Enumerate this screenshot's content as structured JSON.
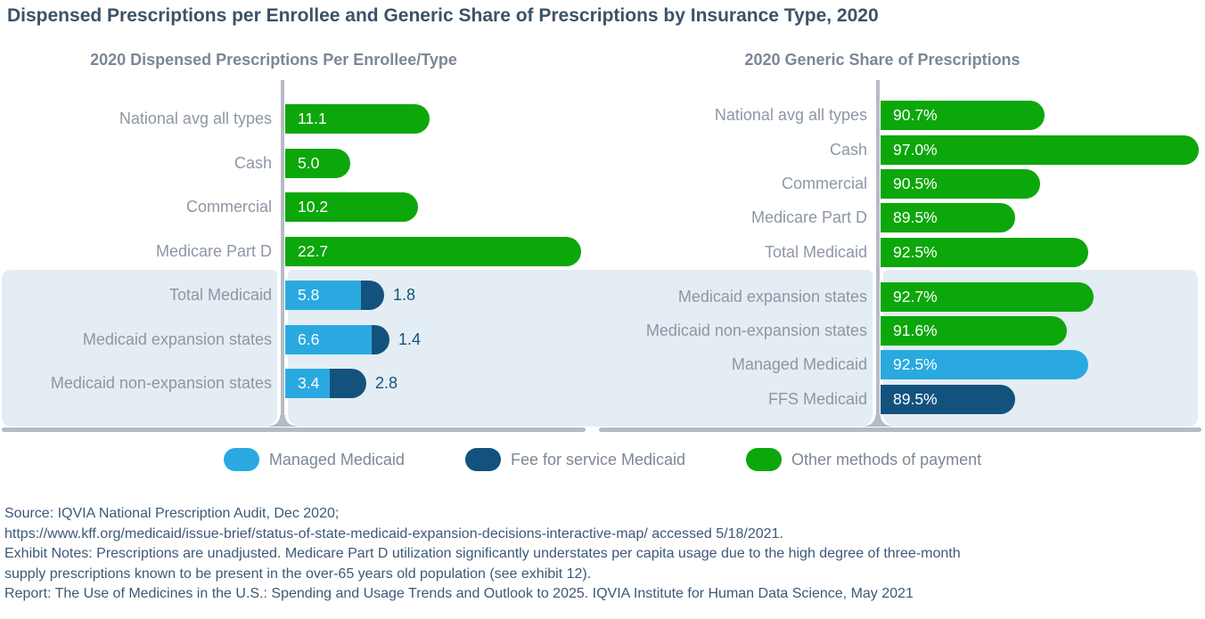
{
  "title": "Dispensed Prescriptions per Enrollee and Generic Share of Prescriptions by Insurance Type, 2020",
  "colors": {
    "green": "#0ca70a",
    "light_blue": "#2aa9e0",
    "dark_blue": "#14527e",
    "highlight_band": "#e3edf3",
    "axis_gray": "#b5bcc4",
    "title_text": "#3c5268",
    "subtitle_text": "#7c8796",
    "label_text": "#8d97a3",
    "outside_value_text": "#17527c",
    "notes_text": "#3e5878"
  },
  "chart_data": [
    {
      "type": "bar",
      "orientation": "horizontal",
      "title": "2020 Dispensed Prescriptions Per Enrollee/Type",
      "xlim": [
        0,
        23.5
      ],
      "grid": false,
      "rows": [
        {
          "label": "National avg all types",
          "highlighted": false,
          "segments": [
            {
              "value": 11.1,
              "text": "11.1",
              "color": "green",
              "text_position": "inside"
            }
          ]
        },
        {
          "label": "Cash",
          "highlighted": false,
          "segments": [
            {
              "value": 5.0,
              "text": "5.0",
              "color": "green",
              "text_position": "inside"
            }
          ]
        },
        {
          "label": "Commercial",
          "highlighted": false,
          "segments": [
            {
              "value": 10.2,
              "text": "10.2",
              "color": "green",
              "text_position": "inside"
            }
          ]
        },
        {
          "label": "Medicare Part D",
          "highlighted": false,
          "segments": [
            {
              "value": 22.7,
              "text": "22.7",
              "color": "green",
              "text_position": "inside"
            }
          ]
        },
        {
          "label": "Total Medicaid",
          "highlighted": true,
          "segments": [
            {
              "value": 5.8,
              "text": "5.8",
              "color": "light_blue",
              "text_position": "inside"
            },
            {
              "value": 1.8,
              "text": "1.8",
              "color": "dark_blue",
              "text_position": "outside"
            }
          ]
        },
        {
          "label": "Medicaid expansion states",
          "highlighted": true,
          "segments": [
            {
              "value": 6.6,
              "text": "6.6",
              "color": "light_blue",
              "text_position": "inside"
            },
            {
              "value": 1.4,
              "text": "1.4",
              "color": "dark_blue",
              "text_position": "outside"
            }
          ]
        },
        {
          "label": "Medicaid non-expansion states",
          "highlighted": true,
          "segments": [
            {
              "value": 3.4,
              "text": "3.4",
              "color": "light_blue",
              "text_position": "inside"
            },
            {
              "value": 2.8,
              "text": "2.8",
              "color": "dark_blue",
              "text_position": "outside"
            }
          ]
        }
      ]
    },
    {
      "type": "bar",
      "orientation": "horizontal",
      "title": "2020 Generic Share of Prescriptions",
      "xlim": [
        84,
        97.4
      ],
      "grid": false,
      "rows": [
        {
          "label": "National avg all types",
          "highlighted": false,
          "segments": [
            {
              "value": 90.7,
              "text": "90.7%",
              "color": "green",
              "text_position": "inside"
            }
          ]
        },
        {
          "label": "Cash",
          "highlighted": false,
          "segments": [
            {
              "value": 97.0,
              "text": "97.0%",
              "color": "green",
              "text_position": "inside"
            }
          ]
        },
        {
          "label": "Commercial",
          "highlighted": false,
          "segments": [
            {
              "value": 90.5,
              "text": "90.5%",
              "color": "green",
              "text_position": "inside"
            }
          ]
        },
        {
          "label": "Medicare Part D",
          "highlighted": false,
          "segments": [
            {
              "value": 89.5,
              "text": "89.5%",
              "color": "green",
              "text_position": "inside"
            }
          ]
        },
        {
          "label": "Total Medicaid",
          "highlighted": false,
          "segments": [
            {
              "value": 92.5,
              "text": "92.5%",
              "color": "green",
              "text_position": "inside"
            }
          ]
        },
        {
          "label": "Medicaid expansion states",
          "highlighted": true,
          "segments": [
            {
              "value": 92.7,
              "text": "92.7%",
              "color": "green",
              "text_position": "inside"
            }
          ]
        },
        {
          "label": "Medicaid non-expansion states",
          "highlighted": true,
          "segments": [
            {
              "value": 91.6,
              "text": "91.6%",
              "color": "green",
              "text_position": "inside"
            }
          ]
        },
        {
          "label": "Managed Medicaid",
          "highlighted": true,
          "segments": [
            {
              "value": 92.5,
              "text": "92.5%",
              "color": "light_blue",
              "text_position": "inside"
            }
          ]
        },
        {
          "label": "FFS Medicaid",
          "highlighted": true,
          "segments": [
            {
              "value": 89.5,
              "text": "89.5%",
              "color": "dark_blue",
              "text_position": "inside"
            }
          ]
        }
      ]
    }
  ],
  "legend": {
    "items": [
      {
        "label": "Managed Medicaid",
        "color": "light_blue"
      },
      {
        "label": "Fee for service Medicaid",
        "color": "dark_blue"
      },
      {
        "label": "Other methods of payment",
        "color": "green"
      }
    ]
  },
  "notes": [
    "Source: IQVIA National Prescription Audit, Dec 2020;",
    "https://www.kff.org/medicaid/issue-brief/status-of-state-medicaid-expansion-decisions-interactive-map/ accessed 5/18/2021.",
    "Exhibit Notes: Prescriptions are unadjusted. Medicare Part D utilization significantly understates per capita usage due to the high degree of three-month",
    "supply prescriptions known to be present in the over-65 years old population (see exhibit 12).",
    "Report: The Use of Medicines in the U.S.: Spending and Usage Trends and Outlook to 2025. IQVIA Institute for Human Data Science, May 2021"
  ]
}
